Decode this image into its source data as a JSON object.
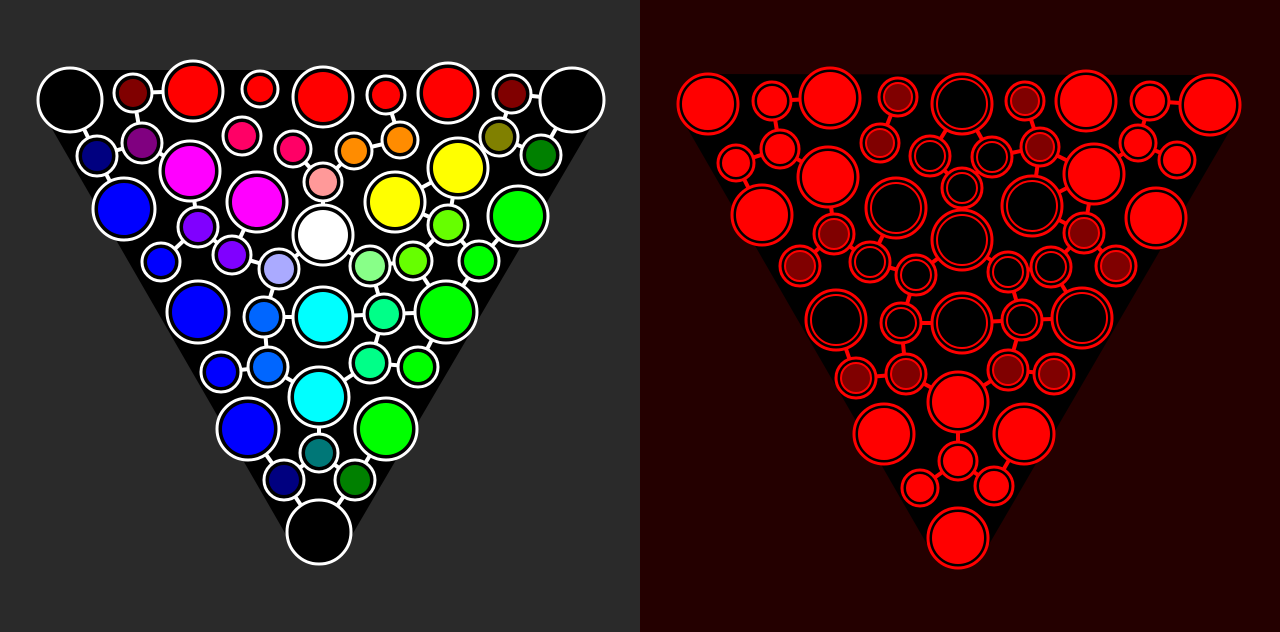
{
  "left_puzzle": {
    "frame_color": "#000000",
    "outline_color": "#ffffff",
    "node_fills": [
      "#000000",
      "#800000",
      "#ff0000",
      "#ff0000",
      "#ff0000",
      "#ff0000",
      "#ff0000",
      "#800000",
      "#000000",
      "#000080",
      "#800080",
      "#ff0066",
      "#ff0066",
      "#ff8c00",
      "#ff8c00",
      "#808000",
      "#008000",
      "#ff00ff",
      "#ff9999",
      "#ffff00",
      "#0000ff",
      "#ff00ff",
      "#ffff00",
      "#00ff00",
      "#8000ff",
      "#66ff00",
      "#ffffff",
      "#0000ff",
      "#8000ff",
      "#aaaaff",
      "#88ff88",
      "#66ff00",
      "#00ff00",
      "#0000ff",
      "#0066ff",
      "#00ffff",
      "#00ff88",
      "#00ff00",
      "#0000ff",
      "#0066ff",
      "#00ff88",
      "#00ff00",
      "#00ffff",
      "#0000ff",
      "#007777",
      "#00ff00",
      "#000080",
      "#008000",
      "#000000"
    ]
  },
  "right_puzzle": {
    "frame_color": "#000000",
    "outline_color": "#ff0000",
    "node_fills": [
      "#ff0000",
      "#ff0000",
      "#ff0000",
      "#800000",
      "#000000",
      "#800000",
      "#ff0000",
      "#ff0000",
      "#ff0000",
      "#ff0000",
      "#ff0000",
      "#800000",
      "#000000",
      "#000000",
      "#800000",
      "#ff0000",
      "#ff0000",
      "#ff0000",
      "#000000",
      "#ff0000",
      "#ff0000",
      "#000000",
      "#000000",
      "#ff0000",
      "#800000",
      "#800000",
      "#000000",
      "#800000",
      "#000000",
      "#000000",
      "#000000",
      "#000000",
      "#800000",
      "#000000",
      "#000000",
      "#000000",
      "#000000",
      "#000000",
      "#800000",
      "#800000",
      "#800000",
      "#800000",
      "#ff0000",
      "#ff0000",
      "#ff0000",
      "#ff0000",
      "#ff0000",
      "#ff0000",
      "#ff0000"
    ]
  }
}
